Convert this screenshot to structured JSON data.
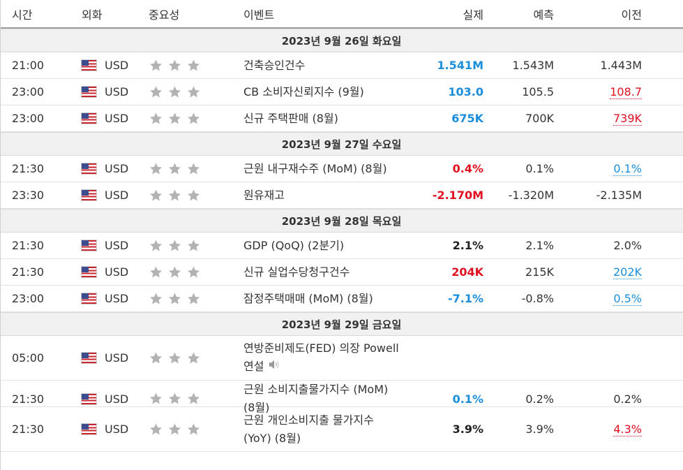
{
  "header": {
    "time": "시간",
    "currency": "외화",
    "importance": "중요성",
    "event": "이벤트",
    "actual": "실제",
    "forecast": "예측",
    "previous": "이전"
  },
  "days": [
    {
      "date": "2023년 9월 26일 화요일",
      "events": [
        {
          "time": "21:00",
          "currency": "USD",
          "event": "건축승인건수",
          "actual": "1.541M",
          "actual_trend": "pos",
          "forecast": "1.543M",
          "previous": "1.443M",
          "previous_style": "plain"
        },
        {
          "time": "23:00",
          "currency": "USD",
          "event": "CB 소비자신뢰지수 (9월)",
          "actual": "103.0",
          "actual_trend": "pos",
          "forecast": "105.5",
          "previous": "108.7",
          "previous_style": "rev-down"
        },
        {
          "time": "23:00",
          "currency": "USD",
          "event": "신규 주택판매 (8월)",
          "actual": "675K",
          "actual_trend": "pos",
          "forecast": "700K",
          "previous": "739K",
          "previous_style": "rev-down"
        }
      ]
    },
    {
      "date": "2023년 9월 27일 수요일",
      "events": [
        {
          "time": "21:30",
          "currency": "USD",
          "event": "근원 내구재수주 (MoM) (8월)",
          "actual": "0.4%",
          "actual_trend": "neg",
          "forecast": "0.1%",
          "previous": "0.1%",
          "previous_style": "rev-up"
        },
        {
          "time": "23:30",
          "currency": "USD",
          "event": "원유재고",
          "actual": "-2.170M",
          "actual_trend": "neg",
          "forecast": "-1.320M",
          "previous": "-2.135M",
          "previous_style": "plain"
        }
      ]
    },
    {
      "date": "2023년 9월 28일 목요일",
      "events": [
        {
          "time": "21:30",
          "currency": "USD",
          "event": "GDP (QoQ) (2분기)",
          "actual": "2.1%",
          "actual_trend": "neu",
          "forecast": "2.1%",
          "previous": "2.0%",
          "previous_style": "plain"
        },
        {
          "time": "21:30",
          "currency": "USD",
          "event": "신규 실업수당청구건수",
          "actual": "204K",
          "actual_trend": "neg",
          "forecast": "215K",
          "previous": "202K",
          "previous_style": "rev-up"
        },
        {
          "time": "23:00",
          "currency": "USD",
          "event": "잠정주택매매 (MoM) (8월)",
          "actual": "-7.1%",
          "actual_trend": "pos",
          "forecast": "-0.8%",
          "previous": "0.5%",
          "previous_style": "rev-up"
        }
      ]
    },
    {
      "date": "2023년 9월 29일 금요일",
      "events": [
        {
          "time": "05:00",
          "currency": "USD",
          "event": "연방준비제도(FED) 의장 Powell 연설",
          "speech": true,
          "actual": "",
          "actual_trend": "neu",
          "forecast": "",
          "previous": "",
          "previous_style": "plain"
        },
        {
          "time": "21:30",
          "currency": "USD",
          "event": "근원 소비지출물가지수 (MoM) (8월)",
          "actual": "0.1%",
          "actual_trend": "pos",
          "forecast": "0.2%",
          "previous": "0.2%",
          "previous_style": "plain"
        },
        {
          "time": "21:30",
          "currency": "USD",
          "event": "근원 개인소비지출 물가지수 (YoY) (8월)",
          "actual": "3.9%",
          "actual_trend": "neu",
          "forecast": "3.9%",
          "previous": "4.3%",
          "previous_style": "rev-down"
        }
      ]
    }
  ],
  "colors": {
    "positive": "#1b8edb",
    "negative": "#e01020",
    "day_band": "#f0f0f0",
    "star": "#b3b3b3"
  },
  "icons": {
    "flag": "us-flag-icon",
    "importance": "star-icon",
    "speech": "speaker-icon"
  }
}
